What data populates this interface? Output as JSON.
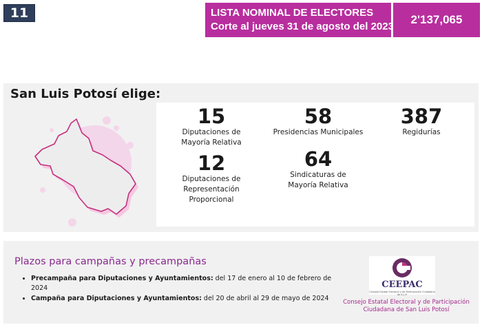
{
  "page_number": "11",
  "header": {
    "line1": "LISTA NOMINAL DE ELECTORES",
    "line2": "Corte al jueves 31 de agosto del 2023",
    "count": "2'137,065"
  },
  "panel": {
    "title": "San Luis Potosí elige:",
    "stats": [
      {
        "number": "15",
        "label": "Diputaciones de Mayoría Relativa"
      },
      {
        "number": "58",
        "label": "Presidencias Municipales"
      },
      {
        "number": "387",
        "label": "Regidurías"
      },
      {
        "number": "12",
        "label": "Diputaciones de Representación Proporcional"
      },
      {
        "number": "64",
        "label": "Sindicaturas de Mayoría Relativa"
      }
    ]
  },
  "plazos": {
    "title": "Plazos para campañas y precampañas",
    "items": [
      {
        "bold": "Precampaña para Diputaciones y Ayuntamientos:",
        "text": " del 17 de enero al 10 de febrero de 2024"
      },
      {
        "bold": "Campaña para Diputaciones y Ayuntamientos:",
        "text": " del 20 de abril al 29 de mayo de 2024"
      }
    ]
  },
  "logo": {
    "name": "CEEPAC",
    "subtitle": "Consejo Estatal Electoral y de Participación Ciudadana de S.L.P.",
    "full_name_line1": "Consejo Estatal Electoral y de Participación",
    "full_name_line2": "Ciudadana de San Luis Potosí"
  },
  "colors": {
    "accent": "#b82e9e",
    "badge": "#2f3e5a",
    "panel": "#f1f1f1"
  }
}
